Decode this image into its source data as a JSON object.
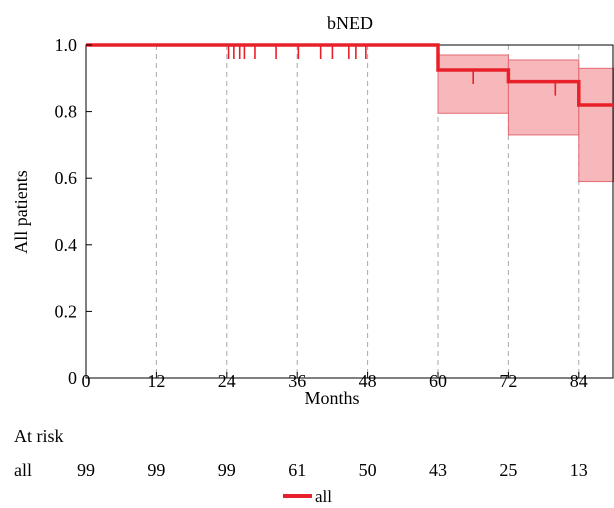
{
  "chart_data": {
    "type": "line",
    "subtype": "kaplan-meier",
    "title": "bNED",
    "xlabel": "Months",
    "ylabel": "All patients",
    "xlim": [
      0,
      90
    ],
    "ylim": [
      0,
      1
    ],
    "x_ticks": [
      0,
      12,
      24,
      36,
      48,
      60,
      72,
      84
    ],
    "x_tick_labels": [
      "0",
      "12",
      "24",
      "36",
      "48",
      "60",
      "72",
      "84"
    ],
    "y_ticks": [
      0,
      0.2,
      0.4,
      0.6,
      0.8,
      1.0
    ],
    "y_tick_labels": [
      "0",
      "0.2",
      "0.4",
      "0.6",
      "0.8",
      "1.0"
    ],
    "vertical_gridlines": [
      12,
      24,
      36,
      48,
      60,
      72,
      84
    ],
    "colors": {
      "curve": "#e8202a",
      "band": "#f4a0a6",
      "grid": "#a9a9a9"
    },
    "series": [
      {
        "name": "all",
        "steps": [
          {
            "x": 0,
            "y": 1.0
          },
          {
            "x": 60,
            "y": 0.925
          },
          {
            "x": 72,
            "y": 0.89
          },
          {
            "x": 84,
            "y": 0.82
          },
          {
            "x": 90,
            "y": 0.82
          }
        ],
        "ci": [
          {
            "x_start": 60,
            "x_end": 72,
            "lower": 0.795,
            "upper": 0.97
          },
          {
            "x_start": 72,
            "x_end": 84,
            "lower": 0.73,
            "upper": 0.955
          },
          {
            "x_start": 84,
            "x_end": 90,
            "lower": 0.59,
            "upper": 0.93
          }
        ],
        "censored": [
          {
            "x": 24.3,
            "y": 1.0
          },
          {
            "x": 25.2,
            "y": 1.0
          },
          {
            "x": 26.2,
            "y": 1.0
          },
          {
            "x": 27.0,
            "y": 1.0
          },
          {
            "x": 28.8,
            "y": 1.0
          },
          {
            "x": 32.4,
            "y": 1.0
          },
          {
            "x": 36.2,
            "y": 1.0
          },
          {
            "x": 40.0,
            "y": 1.0
          },
          {
            "x": 42.0,
            "y": 1.0
          },
          {
            "x": 44.8,
            "y": 1.0
          },
          {
            "x": 46.0,
            "y": 1.0
          },
          {
            "x": 47.7,
            "y": 1.0
          },
          {
            "x": 66.0,
            "y": 0.925
          },
          {
            "x": 80.0,
            "y": 0.89
          }
        ]
      }
    ],
    "at_risk": {
      "heading": "At risk",
      "rows": [
        {
          "label": "all",
          "times": [
            0,
            12,
            24,
            36,
            48,
            60,
            72,
            84
          ],
          "values": [
            "99",
            "99",
            "99",
            "61",
            "50",
            "43",
            "25",
            "13"
          ]
        }
      ]
    },
    "legend": {
      "position": "bottom-center",
      "entries": [
        "all"
      ]
    }
  }
}
